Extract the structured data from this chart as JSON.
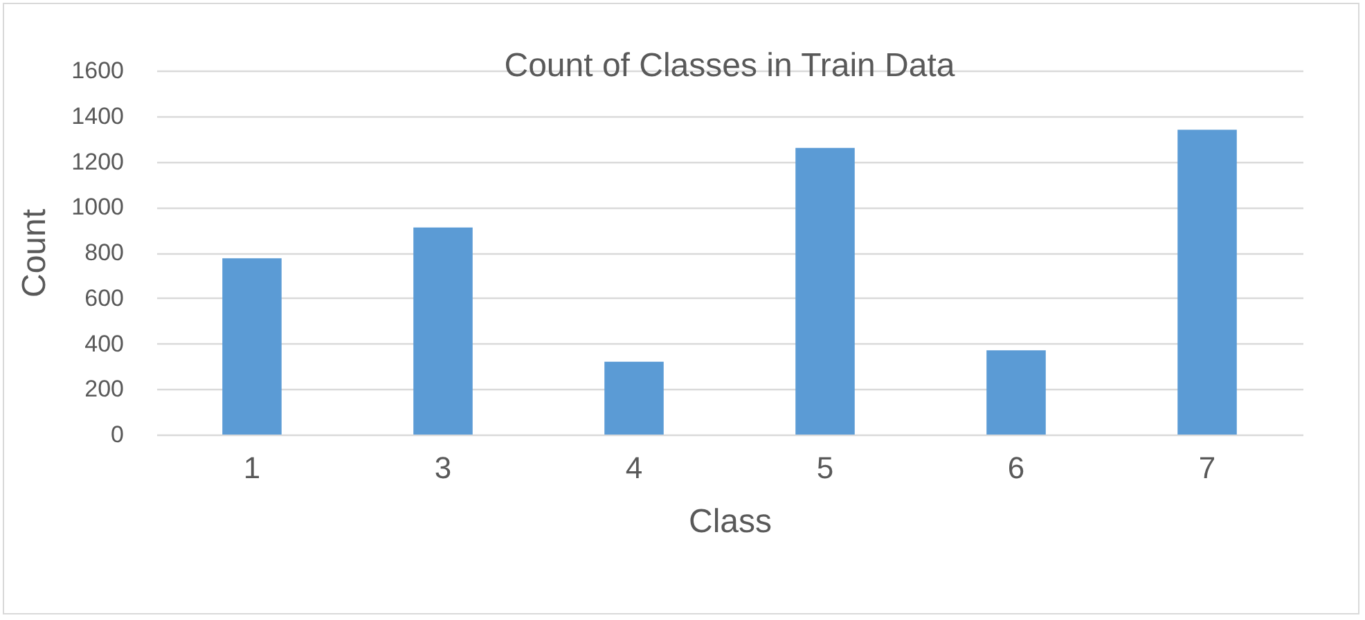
{
  "chart_data": {
    "type": "bar",
    "title": "Count of Classes in Train Data",
    "xlabel": "Class",
    "ylabel": "Count",
    "categories": [
      "1",
      "3",
      "4",
      "5",
      "6",
      "7"
    ],
    "values": [
      775,
      910,
      320,
      1260,
      370,
      1340
    ],
    "color": "#5b9bd5",
    "ylim": [
      0,
      1600
    ],
    "yticks": [
      0,
      200,
      400,
      600,
      800,
      1000,
      1200,
      1400,
      1600
    ],
    "grid": "y"
  }
}
